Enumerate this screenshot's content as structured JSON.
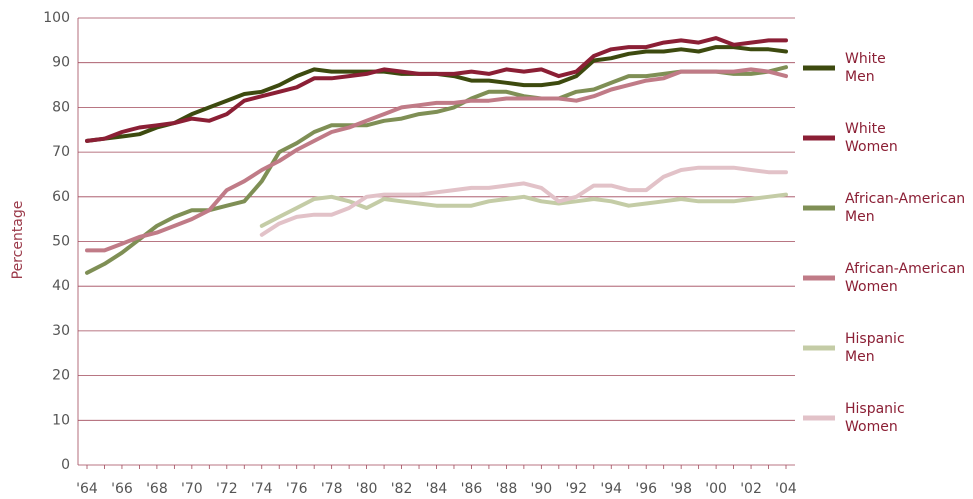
{
  "chart_data": {
    "type": "line",
    "y_label": "Percentage",
    "categories": [
      "'64",
      null,
      "'66",
      null,
      "'68",
      null,
      "'70",
      null,
      "'72",
      null,
      "'74",
      null,
      "'76",
      null,
      "'78",
      null,
      "'80",
      null,
      "'82",
      null,
      "'84",
      null,
      "'86",
      null,
      "'88",
      null,
      "'90",
      null,
      "'92",
      null,
      "'94",
      null,
      "'96",
      null,
      "'98",
      null,
      "'00",
      null,
      "'02",
      null,
      "'04"
    ],
    "ylim": [
      0,
      100
    ],
    "yticks": [
      0,
      10,
      20,
      30,
      40,
      50,
      60,
      70,
      80,
      90,
      100
    ],
    "grid": true,
    "legend": "right",
    "series": [
      {
        "name": "White Men",
        "color": "#3d4a0f",
        "values": [
          72.5,
          73,
          73.5,
          74,
          75.5,
          76.5,
          78.5,
          80,
          81.5,
          83,
          83.5,
          85,
          87,
          88.5,
          88,
          88,
          88,
          88,
          87.5,
          87.5,
          87.5,
          87,
          86,
          86,
          85.5,
          85,
          85,
          85.5,
          87,
          90.5,
          91,
          92,
          92.5,
          92.5,
          93,
          92.5,
          93.5,
          93.5,
          93,
          93,
          92.5
        ]
      },
      {
        "name": "White Women",
        "color": "#8b1f35",
        "values": [
          72.5,
          73,
          74.5,
          75.5,
          76,
          76.5,
          77.5,
          77,
          78.5,
          81.5,
          82.5,
          83.5,
          84.5,
          86.5,
          86.5,
          87,
          87.5,
          88.5,
          88,
          87.5,
          87.5,
          87.5,
          88,
          87.5,
          88.5,
          88,
          88.5,
          87,
          88,
          91.5,
          93,
          93.5,
          93.5,
          94.5,
          95,
          94.5,
          95.5,
          94,
          94.5,
          95,
          95
        ]
      },
      {
        "name": "African-American Men",
        "color": "#7f8f55",
        "values": [
          43,
          45,
          47.5,
          50.5,
          53.5,
          55.5,
          57,
          57,
          58,
          59,
          63.5,
          70,
          72,
          74.5,
          76,
          76,
          76,
          77,
          77.5,
          78.5,
          79,
          80,
          82,
          83.5,
          83.5,
          82.5,
          82,
          82,
          83.5,
          84,
          85.5,
          87,
          87,
          87.5,
          88,
          88,
          88,
          87.5,
          87.5,
          88,
          89
        ]
      },
      {
        "name": "African-American Women",
        "color": "#c07b87",
        "values": [
          48,
          48,
          49.5,
          51,
          52,
          53.5,
          55,
          57,
          61.5,
          63.5,
          66,
          68,
          70.5,
          72.5,
          74.5,
          75.5,
          77,
          78.5,
          80,
          80.5,
          81,
          81,
          81.5,
          81.5,
          82,
          82,
          82,
          82,
          81.5,
          82.5,
          84,
          85,
          86,
          86.5,
          88,
          88,
          88,
          88,
          88.5,
          88,
          87
        ]
      },
      {
        "name": "Hispanic Men",
        "color": "#c4cca6",
        "values": [
          null,
          null,
          null,
          null,
          null,
          null,
          null,
          null,
          null,
          null,
          53.5,
          55.5,
          57.5,
          59.5,
          60,
          59,
          57.5,
          59.5,
          59,
          58.5,
          58,
          58,
          58,
          59,
          59.5,
          60,
          59,
          58.5,
          59,
          59.5,
          59,
          58,
          58.5,
          59,
          59.5,
          59,
          59,
          59,
          59.5,
          60,
          60.5
        ]
      },
      {
        "name": "Hispanic Women",
        "color": "#e2c2c8",
        "values": [
          null,
          null,
          null,
          null,
          null,
          null,
          null,
          null,
          null,
          null,
          51.5,
          54,
          55.5,
          56,
          56,
          57.5,
          60,
          60.5,
          60.5,
          60.5,
          61,
          61.5,
          62,
          62,
          62.5,
          63,
          62,
          59,
          60,
          62.5,
          62.5,
          61.5,
          61.5,
          64.5,
          66,
          66.5,
          66.5,
          66.5,
          66,
          65.5,
          65.5
        ]
      }
    ]
  }
}
